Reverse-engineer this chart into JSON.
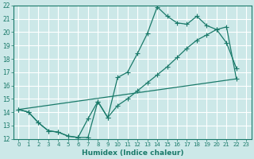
{
  "xlabel": "Humidex (Indice chaleur)",
  "ylabel": "",
  "bg_color": "#cce8e8",
  "grid_color": "#ffffff",
  "line_color": "#1a7a6a",
  "xlim": [
    -0.5,
    23.5
  ],
  "ylim": [
    12,
    22
  ],
  "xticks": [
    0,
    1,
    2,
    3,
    4,
    5,
    6,
    7,
    8,
    9,
    10,
    11,
    12,
    13,
    14,
    15,
    16,
    17,
    18,
    19,
    20,
    21,
    22,
    23
  ],
  "yticks": [
    12,
    13,
    14,
    15,
    16,
    17,
    18,
    19,
    20,
    21,
    22
  ],
  "line1": {
    "x": [
      0,
      1,
      2,
      3,
      4,
      5,
      6,
      7,
      8,
      9,
      10,
      11,
      12,
      13,
      14,
      15,
      16,
      17,
      18,
      19,
      20,
      21,
      22
    ],
    "y": [
      14.2,
      14.0,
      13.2,
      12.6,
      12.5,
      12.2,
      12.1,
      12.1,
      14.8,
      13.6,
      16.6,
      17.0,
      18.4,
      19.9,
      21.9,
      21.2,
      20.7,
      20.6,
      21.2,
      20.5,
      20.2,
      19.2,
      17.3
    ]
  },
  "line2": {
    "x": [
      0,
      1,
      2,
      3,
      4,
      5,
      6,
      7,
      8,
      9,
      10,
      11,
      12,
      13,
      14,
      15,
      16,
      17,
      18,
      19,
      20,
      21,
      22
    ],
    "y": [
      14.2,
      14.0,
      13.2,
      12.6,
      12.5,
      12.2,
      12.1,
      13.5,
      14.8,
      13.6,
      14.5,
      15.0,
      15.6,
      16.2,
      16.8,
      17.4,
      18.1,
      18.8,
      19.4,
      19.8,
      20.2,
      20.4,
      16.5
    ]
  },
  "line3": {
    "x": [
      0,
      22
    ],
    "y": [
      14.2,
      16.5
    ]
  }
}
